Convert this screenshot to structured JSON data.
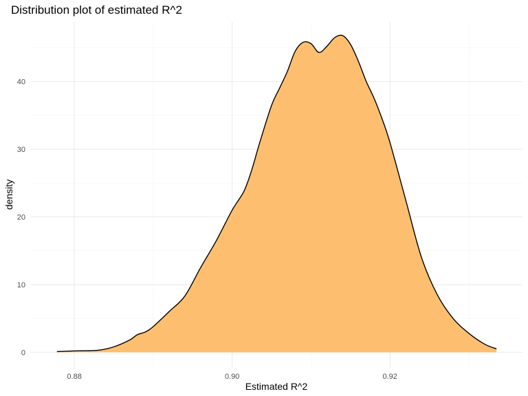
{
  "chart_data": {
    "type": "area",
    "title": "Distribution plot of estimated R^2",
    "xlabel": "Estimated R^2",
    "ylabel": "density",
    "xlim": [
      0.8745,
      0.9368
    ],
    "ylim": [
      -2.4,
      48.8
    ],
    "x_ticks": [
      0.88,
      0.9,
      0.92
    ],
    "x_tick_labels": [
      "0.88",
      "0.90",
      "0.92"
    ],
    "y_ticks": [
      0,
      10,
      20,
      30,
      40
    ],
    "y_tick_labels": [
      "0",
      "10",
      "20",
      "30",
      "40"
    ],
    "grid": true,
    "legend": "none",
    "fill_color": "#fdbf6f",
    "line_color": "#000000",
    "series": [
      {
        "x": [
          0.8778,
          0.88,
          0.883,
          0.885,
          0.887,
          0.888,
          0.889,
          0.89,
          0.892,
          0.894,
          0.896,
          0.898,
          0.9,
          0.9015,
          0.9025,
          0.9035,
          0.905,
          0.906,
          0.907,
          0.908,
          0.909,
          0.91,
          0.911,
          0.912,
          0.913,
          0.914,
          0.915,
          0.916,
          0.917,
          0.918,
          0.919,
          0.92,
          0.922,
          0.924,
          0.926,
          0.928,
          0.93,
          0.932,
          0.9335
        ],
        "values": [
          0.1,
          0.2,
          0.3,
          0.8,
          1.8,
          2.6,
          3.0,
          3.8,
          6.0,
          8.3,
          12.5,
          16.5,
          21.0,
          23.8,
          27.0,
          31.0,
          36.5,
          39.0,
          41.5,
          44.5,
          45.8,
          45.6,
          44.3,
          45.2,
          46.5,
          46.8,
          45.5,
          43.0,
          40.0,
          37.5,
          34.5,
          31.0,
          22.5,
          14.0,
          8.5,
          5.0,
          2.8,
          1.2,
          0.5
        ]
      }
    ]
  }
}
